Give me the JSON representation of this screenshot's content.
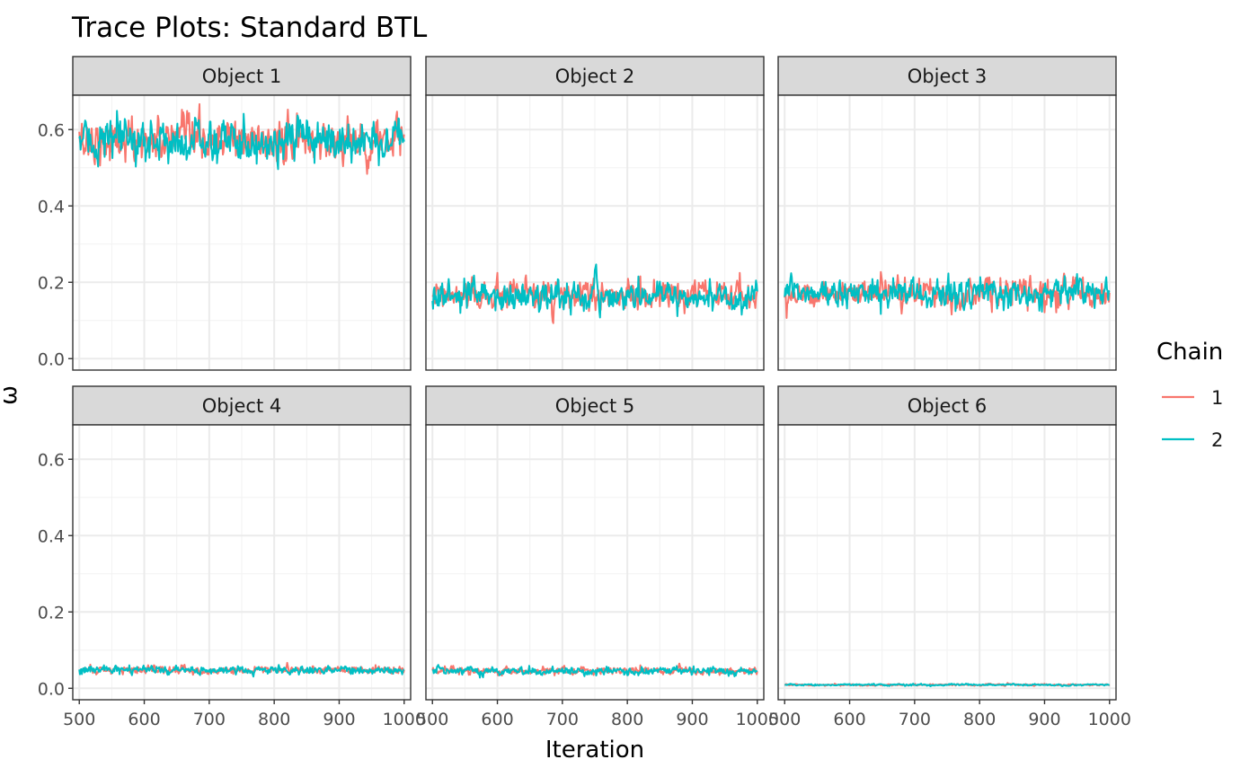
{
  "chart_data": {
    "type": "line",
    "title": "Trace Plots: Standard BTL",
    "xlabel": "Iteration",
    "ylabel": "ω",
    "xlim": [
      490,
      1010
    ],
    "ylim": [
      -0.03,
      0.69
    ],
    "x_ticks": [
      500,
      600,
      700,
      800,
      900,
      1000
    ],
    "y_ticks": [
      0.0,
      0.2,
      0.4,
      0.6
    ],
    "y_tick_labels": [
      "0.0",
      "0.2",
      "0.4",
      "0.6"
    ],
    "grid": true,
    "legend": {
      "title": "Chain",
      "position": "right",
      "entries": [
        "1",
        "2"
      ]
    },
    "series_colors": {
      "1": "#F8766D",
      "2": "#00BFC4"
    },
    "iterations": [
      500,
      1000
    ],
    "facets": [
      {
        "label": "Object 1",
        "series": [
          {
            "name": "1",
            "mean": 0.57,
            "amp": 0.028
          },
          {
            "name": "2",
            "mean": 0.57,
            "amp": 0.027
          }
        ]
      },
      {
        "label": "Object 2",
        "series": [
          {
            "name": "1",
            "mean": 0.163,
            "amp": 0.018
          },
          {
            "name": "2",
            "mean": 0.163,
            "amp": 0.018
          }
        ]
      },
      {
        "label": "Object 3",
        "series": [
          {
            "name": "1",
            "mean": 0.172,
            "amp": 0.018
          },
          {
            "name": "2",
            "mean": 0.172,
            "amp": 0.018
          }
        ]
      },
      {
        "label": "Object 4",
        "series": [
          {
            "name": "1",
            "mean": 0.048,
            "amp": 0.005
          },
          {
            "name": "2",
            "mean": 0.048,
            "amp": 0.005
          }
        ]
      },
      {
        "label": "Object 5",
        "series": [
          {
            "name": "1",
            "mean": 0.045,
            "amp": 0.005
          },
          {
            "name": "2",
            "mean": 0.045,
            "amp": 0.005
          }
        ]
      },
      {
        "label": "Object 6",
        "series": [
          {
            "name": "1",
            "mean": 0.009,
            "amp": 0.0012
          },
          {
            "name": "2",
            "mean": 0.009,
            "amp": 0.0012
          }
        ]
      }
    ]
  }
}
